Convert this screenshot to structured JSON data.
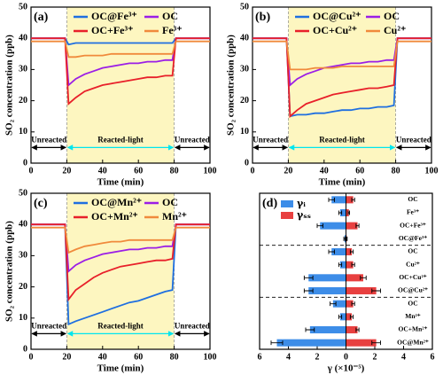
{
  "chart_data": [
    {
      "type": "line",
      "label": "(a)",
      "xlabel": "Time (min)",
      "ylabel": "SO₂ concentration (ppb)",
      "xlim": [
        0,
        100
      ],
      "ylim": [
        0,
        50
      ],
      "xticks": [
        0,
        20,
        40,
        60,
        80,
        100
      ],
      "yticks": [
        0,
        10,
        20,
        30,
        40,
        50
      ],
      "highlight": [
        20,
        80
      ],
      "phases": [
        {
          "label": "Unreacted",
          "color": "#000000"
        },
        {
          "label": "Reacted-light",
          "color": "#00e5ee"
        },
        {
          "label": "Unreacted",
          "color": "#000000"
        }
      ],
      "x": [
        0,
        5,
        10,
        15,
        19,
        21,
        25,
        30,
        35,
        40,
        45,
        50,
        55,
        60,
        65,
        70,
        75,
        79,
        81,
        85,
        90,
        95,
        100
      ],
      "series": [
        {
          "name": "OC@Fe³⁺",
          "color": "#1f6fe0",
          "values": [
            40,
            40,
            40,
            40,
            40,
            38,
            38.5,
            38.5,
            38.5,
            38.5,
            38.5,
            38.5,
            38.5,
            38.5,
            38.5,
            38.5,
            38.5,
            38.5,
            40,
            40,
            40,
            40,
            40
          ]
        },
        {
          "name": "OC",
          "color": "#9b1ee6",
          "values": [
            40,
            40,
            40,
            40,
            40,
            25,
            27,
            28.5,
            29.5,
            30.5,
            31,
            31.5,
            32,
            32,
            32.5,
            32.5,
            33,
            33,
            40,
            40,
            40,
            40,
            40
          ]
        },
        {
          "name": "OC+Fe³⁺",
          "color": "#e8202a",
          "values": [
            40,
            40,
            40,
            40,
            40,
            19,
            21,
            23,
            24,
            25,
            25.5,
            26,
            26.5,
            27,
            27.5,
            27.5,
            28,
            28,
            40,
            40,
            40,
            40,
            40
          ]
        },
        {
          "name": "Fe³⁺",
          "color": "#f08a3c",
          "values": [
            39,
            39,
            39,
            39,
            39,
            34,
            34,
            34.5,
            34.5,
            34.5,
            35,
            35,
            35,
            35,
            35,
            35,
            35,
            35,
            39,
            39,
            39,
            39,
            39
          ]
        }
      ]
    },
    {
      "type": "line",
      "label": "(b)",
      "xlabel": "Time (min)",
      "ylabel": "SO₂ concentration (ppb)",
      "xlim": [
        0,
        100
      ],
      "ylim": [
        0,
        50
      ],
      "xticks": [
        0,
        20,
        40,
        60,
        80,
        100
      ],
      "yticks": [
        0,
        10,
        20,
        30,
        40,
        50
      ],
      "highlight": [
        20,
        80
      ],
      "phases": [
        {
          "label": "Unreacted",
          "color": "#000000"
        },
        {
          "label": "Reacted-light",
          "color": "#00e5ee"
        },
        {
          "label": "Unreacted",
          "color": "#000000"
        }
      ],
      "x": [
        0,
        5,
        10,
        15,
        19,
        21,
        25,
        30,
        35,
        40,
        45,
        50,
        55,
        60,
        65,
        70,
        75,
        79,
        81,
        85,
        90,
        95,
        100
      ],
      "series": [
        {
          "name": "OC@Cu²⁺",
          "color": "#1f6fe0",
          "values": [
            40,
            40,
            40,
            40,
            40,
            15,
            15.5,
            15.5,
            16,
            16,
            16.5,
            17,
            17,
            17.5,
            17.5,
            18,
            18,
            18.5,
            40,
            40,
            40,
            40,
            40
          ]
        },
        {
          "name": "OC",
          "color": "#9b1ee6",
          "values": [
            40,
            40,
            40,
            40,
            40,
            25,
            27,
            28.5,
            29.5,
            30.5,
            31,
            31.5,
            32,
            32,
            32.5,
            32.5,
            33,
            33,
            40,
            40,
            40,
            40,
            40
          ]
        },
        {
          "name": "OC+Cu²⁺",
          "color": "#e8202a",
          "values": [
            40,
            40,
            40,
            40,
            40,
            15,
            17,
            19,
            20,
            21,
            22,
            22.5,
            23,
            23.5,
            24,
            24,
            24.5,
            25,
            40,
            40,
            40,
            40,
            40
          ]
        },
        {
          "name": "Cu²⁺",
          "color": "#f08a3c",
          "values": [
            39,
            39,
            39,
            39,
            39,
            30,
            30,
            30,
            30.5,
            30.5,
            30.5,
            31,
            31,
            31,
            31,
            31,
            31,
            31,
            39,
            39,
            39,
            39,
            39
          ]
        }
      ]
    },
    {
      "type": "line",
      "label": "(c)",
      "xlabel": "Time (min)",
      "ylabel": "SO₂ concentration (ppb)",
      "xlim": [
        0,
        100
      ],
      "ylim": [
        0,
        50
      ],
      "xticks": [
        0,
        20,
        40,
        60,
        80,
        100
      ],
      "yticks": [
        0,
        10,
        20,
        30,
        40,
        50
      ],
      "highlight": [
        20,
        80
      ],
      "phases": [
        {
          "label": "Unreacted",
          "color": "#000000"
        },
        {
          "label": "Reacted-light",
          "color": "#00e5ee"
        },
        {
          "label": "Unreacted",
          "color": "#000000"
        }
      ],
      "x": [
        0,
        5,
        10,
        15,
        19,
        21,
        25,
        30,
        35,
        40,
        45,
        50,
        55,
        60,
        65,
        70,
        75,
        79,
        81,
        85,
        90,
        95,
        100
      ],
      "series": [
        {
          "name": "OC@Mn²⁺",
          "color": "#1f6fe0",
          "values": [
            40,
            40,
            40,
            40,
            40,
            8,
            9,
            10,
            11,
            12,
            13,
            14,
            15,
            15.5,
            16.5,
            17.5,
            18.5,
            19,
            40,
            40,
            40,
            40,
            40
          ]
        },
        {
          "name": "OC",
          "color": "#9b1ee6",
          "values": [
            40,
            40,
            40,
            40,
            40,
            25,
            27,
            28.5,
            29.5,
            30.5,
            31,
            31.5,
            32,
            32,
            32.5,
            32.5,
            33,
            33,
            40,
            40,
            40,
            40,
            40
          ]
        },
        {
          "name": "OC+Mn²⁺",
          "color": "#e8202a",
          "values": [
            40,
            40,
            40,
            40,
            40,
            16,
            19,
            21,
            23,
            24.5,
            25.5,
            26.5,
            27,
            27.5,
            28,
            28.5,
            28.5,
            29,
            40,
            40,
            40,
            40,
            40
          ]
        },
        {
          "name": "Mn²⁺",
          "color": "#f08a3c",
          "values": [
            39,
            39,
            39,
            39,
            39,
            31,
            32,
            33,
            33.5,
            34,
            34.5,
            34.5,
            35,
            35,
            35,
            35,
            35,
            35,
            39,
            39,
            39,
            39,
            39
          ]
        }
      ]
    },
    {
      "type": "bar",
      "label": "(d)",
      "xlabel": "γ (×10⁻⁵)",
      "orientation": "horizontal",
      "xlim": [
        -6,
        6
      ],
      "xticks": [
        {
          "value": -6,
          "label": "6"
        },
        {
          "value": -4,
          "label": "4"
        },
        {
          "value": -2,
          "label": "2"
        },
        0,
        2,
        4,
        6
      ],
      "categories": [
        "OC",
        "Fe³⁺",
        "OC+Fe³⁺",
        "OC@Fe³⁺",
        "OC",
        "Cu²⁺",
        "OC+Cu²⁺",
        "OC@Cu²⁺",
        "OC",
        "Mn²⁺",
        "OC+Mn²⁺",
        "OC@Mn²⁺"
      ],
      "series": [
        {
          "name": "γᵢ",
          "color": "#3d8de8",
          "direction": "left",
          "values": [
            1.0,
            0.4,
            1.8,
            0.1,
            1.0,
            0.4,
            2.6,
            2.6,
            0.9,
            0.4,
            2.5,
            4.8
          ],
          "errors": [
            0.2,
            0.1,
            0.2,
            0.05,
            0.2,
            0.1,
            0.3,
            0.3,
            0.2,
            0.1,
            0.3,
            0.4
          ]
        },
        {
          "name": "γₛₛ",
          "color": "#e84040",
          "direction": "right",
          "values": [
            0.5,
            0.2,
            0.8,
            0.05,
            0.4,
            0.5,
            1.2,
            2.1,
            0.5,
            0.4,
            0.8,
            2.1
          ],
          "errors": [
            0.1,
            0.05,
            0.1,
            0.03,
            0.1,
            0.1,
            0.2,
            0.3,
            0.1,
            0.1,
            0.1,
            0.3
          ]
        }
      ]
    }
  ]
}
